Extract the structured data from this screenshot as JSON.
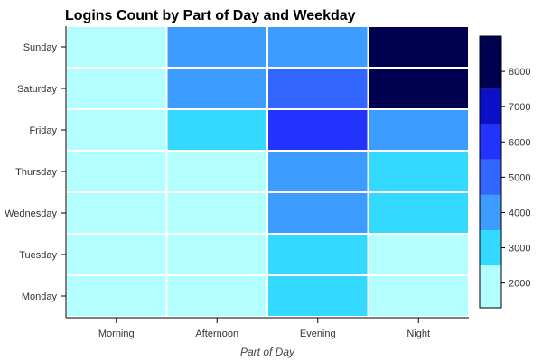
{
  "chart_data": {
    "type": "heatmap",
    "title": "Logins Count by Part of Day and Weekday",
    "xlabel": "Part of Day",
    "ylabel": "",
    "x": [
      "Morning",
      "Afternoon",
      "Evening",
      "Night"
    ],
    "y": [
      "Sunday",
      "Saturday",
      "Friday",
      "Thursday",
      "Wednesday",
      "Tuesday",
      "Monday"
    ],
    "values": [
      [
        1800,
        4300,
        4200,
        8600
      ],
      [
        1700,
        4100,
        5200,
        8700
      ],
      [
        1800,
        3200,
        6300,
        4200
      ],
      [
        1700,
        1900,
        4300,
        3300
      ],
      [
        1700,
        1800,
        4400,
        3300
      ],
      [
        1700,
        1800,
        3300,
        1900
      ],
      [
        1700,
        1800,
        3200,
        1800
      ]
    ],
    "colorbar": {
      "range": [
        1300,
        9000
      ],
      "ticks": [
        2000,
        3000,
        4000,
        5000,
        6000,
        7000,
        8000
      ],
      "bins": [
        {
          "from": 1300,
          "to": 2500,
          "color": "#b3ffff"
        },
        {
          "from": 2500,
          "to": 3500,
          "color": "#33d9ff"
        },
        {
          "from": 3500,
          "to": 4500,
          "color": "#3d9cff"
        },
        {
          "from": 4500,
          "to": 5500,
          "color": "#3366ff"
        },
        {
          "from": 5500,
          "to": 6500,
          "color": "#2233ff"
        },
        {
          "from": 6500,
          "to": 7500,
          "color": "#0b10c8"
        },
        {
          "from": 7500,
          "to": 9000,
          "color": "#000050"
        }
      ]
    },
    "grid": false,
    "legend": "right colorbar"
  }
}
